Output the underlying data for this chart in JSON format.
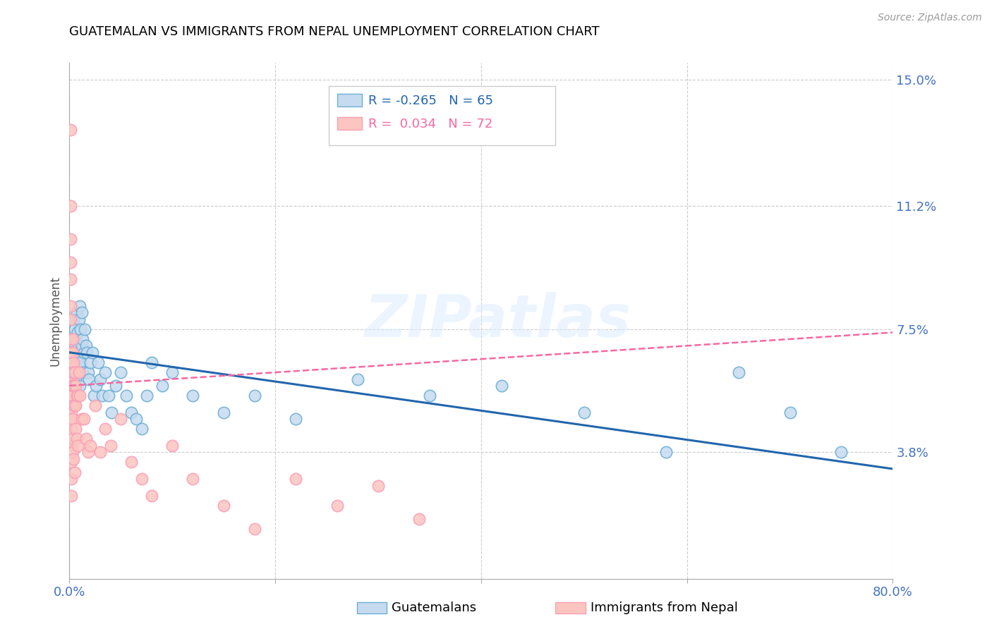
{
  "title": "GUATEMALAN VS IMMIGRANTS FROM NEPAL UNEMPLOYMENT CORRELATION CHART",
  "source": "Source: ZipAtlas.com",
  "ylabel": "Unemployment",
  "yticks": [
    0.0,
    0.038,
    0.075,
    0.112,
    0.15
  ],
  "ytick_labels": [
    "",
    "3.8%",
    "7.5%",
    "11.2%",
    "15.0%"
  ],
  "legend_blue_r": "R = -0.265",
  "legend_blue_n": "N = 65",
  "legend_pink_r": "R =  0.034",
  "legend_pink_n": "N = 72",
  "legend_label_blue": "Guatemalans",
  "legend_label_pink": "Immigrants from Nepal",
  "blue_fill_color": "#c6dbef",
  "blue_edge_color": "#6baed6",
  "pink_fill_color": "#fcc5c0",
  "pink_edge_color": "#fa9fb5",
  "blue_line_color": "#2166ac",
  "pink_line_color": "#f768a1",
  "watermark": "ZIPatlas",
  "blue_scatter_x": [
    0.002,
    0.003,
    0.003,
    0.004,
    0.004,
    0.005,
    0.005,
    0.005,
    0.006,
    0.006,
    0.006,
    0.007,
    0.007,
    0.007,
    0.008,
    0.008,
    0.009,
    0.009,
    0.009,
    0.01,
    0.01,
    0.011,
    0.011,
    0.012,
    0.012,
    0.013,
    0.013,
    0.014,
    0.015,
    0.016,
    0.017,
    0.018,
    0.019,
    0.02,
    0.022,
    0.024,
    0.026,
    0.028,
    0.03,
    0.032,
    0.035,
    0.038,
    0.041,
    0.045,
    0.05,
    0.055,
    0.06,
    0.065,
    0.07,
    0.075,
    0.08,
    0.09,
    0.1,
    0.12,
    0.15,
    0.18,
    0.22,
    0.28,
    0.35,
    0.42,
    0.5,
    0.58,
    0.65,
    0.7,
    0.75
  ],
  "blue_scatter_y": [
    0.068,
    0.072,
    0.065,
    0.078,
    0.06,
    0.07,
    0.075,
    0.058,
    0.065,
    0.072,
    0.06,
    0.08,
    0.068,
    0.062,
    0.074,
    0.066,
    0.078,
    0.064,
    0.07,
    0.082,
    0.058,
    0.075,
    0.065,
    0.08,
    0.07,
    0.072,
    0.062,
    0.068,
    0.075,
    0.07,
    0.068,
    0.062,
    0.06,
    0.065,
    0.068,
    0.055,
    0.058,
    0.065,
    0.06,
    0.055,
    0.062,
    0.055,
    0.05,
    0.058,
    0.062,
    0.055,
    0.05,
    0.048,
    0.045,
    0.055,
    0.065,
    0.058,
    0.062,
    0.055,
    0.05,
    0.055,
    0.048,
    0.06,
    0.055,
    0.058,
    0.05,
    0.038,
    0.062,
    0.05,
    0.038
  ],
  "pink_scatter_x": [
    0.001,
    0.001,
    0.001,
    0.001,
    0.001,
    0.001,
    0.001,
    0.001,
    0.001,
    0.001,
    0.001,
    0.001,
    0.002,
    0.002,
    0.002,
    0.002,
    0.002,
    0.002,
    0.002,
    0.002,
    0.002,
    0.002,
    0.002,
    0.002,
    0.002,
    0.003,
    0.003,
    0.003,
    0.003,
    0.003,
    0.003,
    0.003,
    0.003,
    0.004,
    0.004,
    0.004,
    0.004,
    0.004,
    0.005,
    0.005,
    0.005,
    0.005,
    0.006,
    0.006,
    0.006,
    0.007,
    0.007,
    0.008,
    0.008,
    0.009,
    0.01,
    0.012,
    0.014,
    0.016,
    0.018,
    0.02,
    0.025,
    0.03,
    0.035,
    0.04,
    0.05,
    0.06,
    0.07,
    0.08,
    0.1,
    0.12,
    0.15,
    0.18,
    0.22,
    0.26,
    0.3,
    0.34
  ],
  "pink_scatter_y": [
    0.135,
    0.112,
    0.102,
    0.095,
    0.09,
    0.082,
    0.078,
    0.072,
    0.068,
    0.062,
    0.055,
    0.048,
    0.068,
    0.065,
    0.06,
    0.058,
    0.055,
    0.05,
    0.048,
    0.045,
    0.04,
    0.038,
    0.035,
    0.03,
    0.025,
    0.072,
    0.068,
    0.062,
    0.058,
    0.055,
    0.048,
    0.042,
    0.038,
    0.065,
    0.062,
    0.058,
    0.052,
    0.036,
    0.062,
    0.058,
    0.052,
    0.032,
    0.058,
    0.052,
    0.045,
    0.055,
    0.042,
    0.055,
    0.04,
    0.062,
    0.055,
    0.048,
    0.048,
    0.042,
    0.038,
    0.04,
    0.052,
    0.038,
    0.045,
    0.04,
    0.048,
    0.035,
    0.03,
    0.025,
    0.04,
    0.03,
    0.022,
    0.015,
    0.03,
    0.022,
    0.028,
    0.018
  ],
  "blue_line_x": [
    0.0,
    0.8
  ],
  "blue_line_y_start": 0.068,
  "blue_line_y_end": 0.033,
  "pink_line_x": [
    0.0,
    0.8
  ],
  "pink_line_y_start": 0.058,
  "pink_line_y_end": 0.074,
  "xlim": [
    0.0,
    0.8
  ],
  "ylim": [
    0.0,
    0.155
  ]
}
